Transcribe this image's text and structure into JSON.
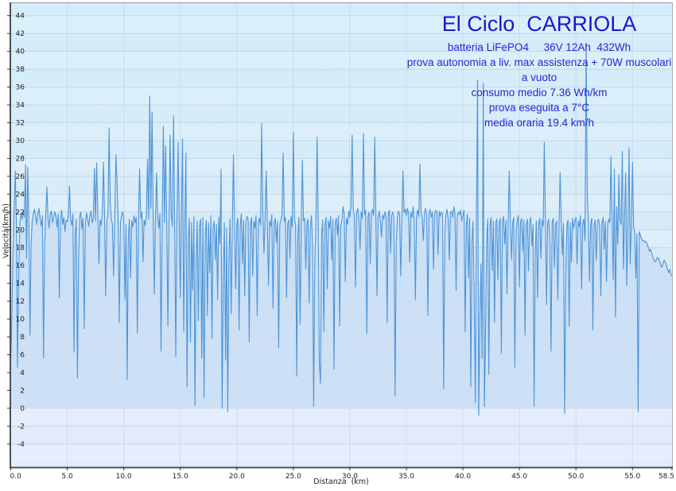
{
  "colors": {
    "line": "#4d94d6",
    "area": "#c9def5",
    "plot_bg_top": "#d3edfa",
    "plot_bg_bottom": "#e3eafc",
    "grid": "#a9c4d4",
    "frame_dark": "#4b515b",
    "frame_light": "#9aa3ad",
    "title": "#1717d0",
    "subtitle": "#2525d6",
    "tick_text": "#222222"
  },
  "chart_data": {
    "type": "line",
    "title": "El Ciclo  CARRIOLA",
    "annotations": [
      "batteria LiFePO4     36V 12Ah  432Wh",
      "prova autonomia a liv. max assistenza + 70W muscolari",
      "a vuoto",
      "consumo medio 7.36 Wh/km",
      "prova eseguita a 7°C",
      "media oraria 19.4 km/h"
    ],
    "xlabel": "Distanza  (km)",
    "ylabel": "Velocità(km/h)",
    "grid": true,
    "legend": "none",
    "xlim": [
      0,
      58.5
    ],
    "ylim": [
      -6.6,
      45.4
    ],
    "x_ticks": [
      0,
      5,
      10,
      15,
      20,
      25,
      30,
      35,
      40,
      45,
      50,
      55,
      58.5
    ],
    "x_tick_labels": [
      "0.0",
      "5.0",
      "10.0",
      "15.0",
      "20.0",
      "25.0",
      "30.0",
      "35.0",
      "40.0",
      "45.0",
      "50.0",
      "55.0",
      "58.5"
    ],
    "y_ticks": [
      -4,
      -2,
      0,
      2,
      4,
      6,
      8,
      10,
      12,
      14,
      16,
      18,
      20,
      22,
      24,
      26,
      28,
      30,
      32,
      34,
      36,
      38,
      40,
      42,
      44
    ],
    "y_tick_labels": [
      "-4",
      "-2",
      "0",
      "2",
      "4",
      "6",
      "8",
      "10",
      "12",
      "14",
      "16",
      "18",
      "20",
      "22",
      "24",
      "26",
      "28",
      "30",
      "32",
      "34",
      "36",
      "38",
      "40",
      "42",
      "44"
    ],
    "x_start": 0,
    "x_step": 0.1,
    "values": [
      4.8,
      10.5,
      17.2,
      22.4,
      26.6,
      20.8,
      4.6,
      14.2,
      20.6,
      21.8,
      21.2,
      22.0,
      21.4,
      27.3,
      16.8,
      27.0,
      21.6,
      8.2,
      18.5,
      21.0,
      21.8,
      22.3,
      21.5,
      20.6,
      21.9,
      22.4,
      21.2,
      20.4,
      21.6,
      5.6,
      18.4,
      21.9,
      24.8,
      21.3,
      20.2,
      21.7,
      22.1,
      20.8,
      21.4,
      22.0,
      21.5,
      20.3,
      21.8,
      12.4,
      21.0,
      22.2,
      20.6,
      21.4,
      19.8,
      21.1,
      20.9,
      21.6,
      24.9,
      21.2,
      20.5,
      21.8,
      6.3,
      19.4,
      21.2,
      3.4,
      16.8,
      21.5,
      22.0,
      20.1,
      21.3,
      8.9,
      20.7,
      21.9,
      21.2,
      20.4,
      21.6,
      22.1,
      20.8,
      21.3,
      26.9,
      21.0,
      27.5,
      22.3,
      16.2,
      21.1,
      20.5,
      21.8,
      27.6,
      21.4,
      12.6,
      20.9,
      21.7,
      31.4,
      23.0,
      21.2,
      20.6,
      14.8,
      21.3,
      28.4,
      25.6,
      21.0,
      9.6,
      20.8,
      21.5,
      22.0,
      21.4,
      12.2,
      20.6,
      3.2,
      18.9,
      21.2,
      14.6,
      21.0,
      20.3,
      21.6,
      20.8,
      21.4,
      8.4,
      20.9,
      26.8,
      21.3,
      22.0,
      16.4,
      21.1,
      20.5,
      21.7,
      27.9,
      21.2,
      35.0,
      22.4,
      33.2,
      21.6,
      12.8,
      21.0,
      26.4,
      21.5,
      20.2,
      21.8,
      6.4,
      21.2,
      31.6,
      20.8,
      29.4,
      21.4,
      9.2,
      21.0,
      30.6,
      21.8,
      20.4,
      32.8,
      21.2,
      5.8,
      20.6,
      29.8,
      21.4,
      12.4,
      21.6,
      30.2,
      8.6,
      21.0,
      28.6,
      2.4,
      18.8,
      21.3,
      7.4,
      20.8,
      13.2,
      21.5,
      0.3,
      16.4,
      21.0,
      9.8,
      20.4,
      21.2,
      5.6,
      21.4,
      1.2,
      19.6,
      21.1,
      10.4,
      20.8,
      15.2,
      21.6,
      7.8,
      20.2,
      21.0,
      16.6,
      20.6,
      12.2,
      21.4,
      18.4,
      26.8,
      0.0,
      14.6,
      20.8,
      5.4,
      20.2,
      -0.4,
      16.8,
      21.2,
      10.6,
      20.4,
      28.4,
      21.0,
      13.4,
      20.6,
      21.3,
      8.8,
      20.4,
      21.8,
      16.2,
      21.1,
      12.6,
      20.8,
      21.5,
      21.2,
      7.4,
      20.6,
      21.4,
      14.8,
      21.0,
      20.2,
      21.6,
      10.4,
      20.9,
      21.3,
      20.5,
      31.9,
      21.8,
      17.4,
      21.2,
      26.6,
      20.6,
      13.8,
      21.0,
      20.4,
      21.7,
      11.2,
      20.8,
      21.3,
      18.6,
      21.0,
      6.8,
      20.5,
      21.2,
      21.6,
      28.6,
      20.9,
      21.4,
      12.4,
      20.7,
      21.1,
      16.8,
      21.5,
      20.3,
      30.9,
      21.2,
      20.6,
      3.6,
      19.2,
      21.4,
      9.4,
      20.8,
      27.8,
      21.0,
      21.3,
      15.6,
      20.7,
      21.2,
      11.8,
      20.4,
      21.6,
      18.2,
      0.2,
      16.4,
      20.9,
      30.4,
      21.3,
      5.2,
      2.8,
      19.6,
      21.1,
      8.6,
      20.5,
      21.4,
      13.4,
      21.0,
      20.2,
      21.5,
      16.6,
      21.2,
      4.4,
      20.8,
      21.3,
      19.4,
      21.6,
      9.2,
      20.4,
      21.1,
      22.6,
      21.8,
      14.2,
      21.3,
      20.6,
      22.1,
      21.4,
      22.8,
      30.6,
      22.2,
      21.6,
      13.6,
      21.9,
      22.4,
      21.2,
      17.8,
      22.0,
      21.3,
      30.8,
      21.7,
      22.2,
      8.4,
      21.5,
      22.0,
      16.2,
      21.8,
      22.3,
      21.6,
      30.4,
      22.0,
      12.6,
      21.4,
      22.1,
      21.0,
      19.2,
      21.7,
      21.2,
      22.0,
      21.5,
      9.6,
      21.8,
      22.2,
      17.4,
      21.6,
      22.0,
      21.3,
      1.4,
      18.6,
      21.4,
      22.1,
      21.7,
      14.8,
      21.2,
      26.6,
      21.9,
      22.3,
      21.6,
      22.4,
      21.8,
      16.4,
      22.0,
      21.4,
      22.6,
      21.1,
      12.2,
      21.7,
      22.2,
      21.5,
      27.4,
      22.0,
      21.3,
      18.8,
      21.9,
      22.4,
      21.6,
      10.4,
      21.8,
      22.3,
      21.4,
      22.0,
      15.6,
      21.7,
      22.2,
      21.9,
      17.2,
      22.1,
      21.5,
      22.0,
      21.8,
      2.2,
      19.4,
      21.6,
      22.3,
      21.2,
      16.6,
      21.9,
      22.1,
      21.4,
      22.6,
      21.8,
      13.2,
      21.5,
      22.0,
      21.7,
      22.2,
      21.0,
      21.6,
      22.2,
      8.6,
      20.4,
      21.8,
      14.6,
      21.3,
      2.4,
      18.8,
      21.0,
      12.2,
      0.6,
      21.4,
      36.8,
      -0.8,
      10.4,
      16.2,
      5.6,
      36.4,
      0.2,
      8.4,
      18.6,
      21.2,
      3.8,
      20.6,
      21.4,
      15.4,
      21.0,
      9.6,
      20.8,
      21.2,
      14.4,
      20.7,
      21.3,
      6.2,
      20.9,
      21.5,
      18.4,
      21.1,
      12.8,
      20.6,
      26.6,
      21.2,
      16.6,
      20.8,
      21.4,
      4.6,
      19.8,
      21.0,
      21.6,
      13.6,
      20.9,
      21.3,
      17.6,
      21.1,
      8.2,
      20.5,
      21.2,
      15.4,
      20.8,
      21.4,
      18.2,
      20.6,
      0.2,
      17.4,
      21.0,
      12.4,
      20.7,
      21.3,
      16.8,
      21.1,
      20.4,
      29.8,
      21.6,
      11.6,
      20.8,
      21.2,
      18.6,
      6.4,
      20.9,
      21.3,
      15.8,
      20.6,
      21.0,
      12.2,
      20.4,
      26.4,
      21.2,
      17.2,
      20.7,
      -0.6,
      14.8,
      20.5,
      21.1,
      9.2,
      20.8,
      16.4,
      21.3,
      20.2,
      21.0,
      21.4,
      16.2,
      21.0,
      20.3,
      21.6,
      13.4,
      20.8,
      21.2,
      18.8,
      40.8,
      24.2,
      21.0,
      14.2,
      20.6,
      21.3,
      8.8,
      20.4,
      21.1,
      16.6,
      20.9,
      21.2,
      20.5,
      12.6,
      20.8,
      21.4,
      17.8,
      21.0,
      14.2,
      20.6,
      21.2,
      20.8,
      28.2,
      21.1,
      14.4,
      26.8,
      10.2,
      22.6,
      18.4,
      26.2,
      21.0,
      20.6,
      28.8,
      15.6,
      21.2,
      26.4,
      13.8,
      20.8,
      29.2,
      16.2,
      20.4,
      27.6,
      20.2,
      19.8,
      14.6,
      19.6,
      -0.4,
      19.8,
      19.4,
      19.0,
      18.8,
      18.8,
      18.6,
      18.7,
      18.4,
      18.0,
      17.6,
      17.8,
      17.4,
      17.0,
      16.6,
      16.4,
      16.6,
      16.9,
      16.8,
      16.5,
      16.0,
      15.8,
      16.2,
      16.6,
      16.4,
      16.0,
      15.6,
      15.2,
      15.6,
      15.0,
      14.8
    ]
  }
}
